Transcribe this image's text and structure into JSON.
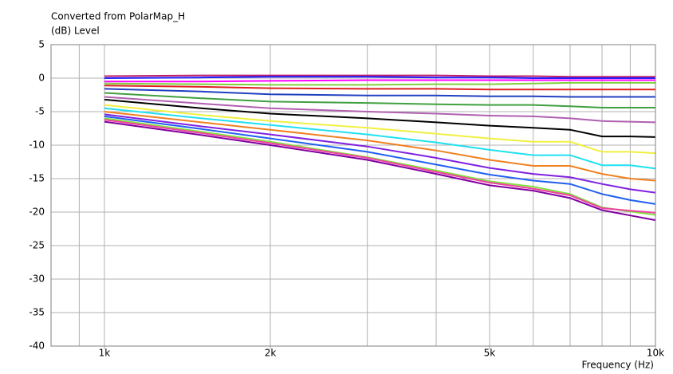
{
  "chart_data": {
    "type": "line",
    "title": "Converted from PolarMap_H",
    "ylabel": "(dB) Level",
    "xlabel": "Frequency (Hz)",
    "xscale": "log",
    "grid": true,
    "xlim": [
      800,
      10000
    ],
    "xticks": [
      {
        "value": 1000,
        "label": "1k"
      },
      {
        "value": 2000,
        "label": "2k"
      },
      {
        "value": 5000,
        "label": "5k"
      },
      {
        "value": 10000,
        "label": "10k"
      }
    ],
    "xgrid": [
      800,
      900,
      1000,
      2000,
      3000,
      4000,
      5000,
      6000,
      7000,
      8000,
      9000,
      10000
    ],
    "ylim": [
      -40,
      5
    ],
    "yticks": [
      5,
      0,
      -5,
      -10,
      -15,
      -20,
      -25,
      -30,
      -35,
      -40
    ],
    "x": [
      1000,
      1500,
      2000,
      3000,
      4000,
      5000,
      6000,
      7000,
      8000,
      9000,
      10000
    ],
    "series": [
      {
        "color": "#c0206a",
        "values": [
          0.3,
          0.4,
          0.4,
          0.4,
          0.4,
          0.3,
          0.3,
          0.2,
          0.2,
          0.2,
          0.2
        ]
      },
      {
        "color": "#2020ff",
        "values": [
          0,
          0.1,
          0.2,
          0.2,
          0.1,
          0.1,
          0,
          0,
          0,
          0,
          0
        ]
      },
      {
        "color": "#ff00ff",
        "values": [
          -0.5,
          -0.5,
          -0.4,
          -0.3,
          -0.3,
          -0.3,
          -0.3,
          -0.3,
          -0.3,
          -0.3,
          -0.3
        ]
      },
      {
        "color": "#80d040",
        "values": [
          -0.8,
          -0.9,
          -1,
          -1,
          -0.9,
          -0.9,
          -0.8,
          -0.7,
          -0.7,
          -0.7,
          -0.7
        ]
      },
      {
        "color": "#e02020",
        "values": [
          -1.1,
          -1.3,
          -1.5,
          -1.6,
          -1.6,
          -1.7,
          -1.7,
          -1.7,
          -1.7,
          -1.7,
          -1.7
        ]
      },
      {
        "color": "#2040c0",
        "values": [
          -1.6,
          -2,
          -2.4,
          -2.6,
          -2.6,
          -2.7,
          -2.7,
          -2.8,
          -2.8,
          -2.8,
          -2.8
        ]
      },
      {
        "color": "#40a040",
        "values": [
          -2.2,
          -3,
          -3.5,
          -3.7,
          -3.9,
          -4,
          -4,
          -4.2,
          -4.4,
          -4.4,
          -4.4
        ]
      },
      {
        "color": "#b060b0",
        "values": [
          -2.8,
          -3.8,
          -4.5,
          -5,
          -5.3,
          -5.6,
          -5.7,
          -6,
          -6.4,
          -6.5,
          -6.6
        ]
      },
      {
        "color": "#000000",
        "values": [
          -3.2,
          -4.5,
          -5.3,
          -6,
          -6.6,
          -7.1,
          -7.4,
          -7.7,
          -8.7,
          -8.7,
          -8.8
        ]
      },
      {
        "color": "#f0f040",
        "values": [
          -4,
          -5.5,
          -6.4,
          -7.4,
          -8.3,
          -9,
          -9.5,
          -9.5,
          -11,
          -11,
          -11.2
        ]
      },
      {
        "color": "#20e0f0",
        "values": [
          -4.5,
          -6,
          -7,
          -8.4,
          -9.6,
          -10.7,
          -11.5,
          -11.5,
          -13,
          -13,
          -13.5
        ]
      },
      {
        "color": "#f08020",
        "values": [
          -5,
          -6.6,
          -7.7,
          -9.3,
          -10.8,
          -12.2,
          -13.1,
          -13.1,
          -14.3,
          -15,
          -15.3
        ]
      },
      {
        "color": "#8020e0",
        "values": [
          -5.4,
          -7.2,
          -8.4,
          -10.2,
          -11.9,
          -13.4,
          -14.3,
          -14.8,
          -15.8,
          -16.6,
          -17.1
        ]
      },
      {
        "color": "#2060f0",
        "values": [
          -5.7,
          -7.6,
          -9,
          -11,
          -12.9,
          -14.4,
          -15.3,
          -15.8,
          -17.3,
          -18.2,
          -18.8
        ]
      },
      {
        "color": "#80e040",
        "values": [
          -6,
          -8,
          -9.5,
          -11.8,
          -13.8,
          -15.4,
          -16.2,
          -17.3,
          -19.3,
          -19.9,
          -20.4
        ]
      },
      {
        "color": "#f040a0",
        "values": [
          -6.2,
          -8.2,
          -9.7,
          -11.9,
          -14,
          -15.6,
          -16.5,
          -17.5,
          -19.4,
          -19.8,
          -20.1
        ]
      },
      {
        "color": "#8000a0",
        "values": [
          -6.5,
          -8.5,
          -10,
          -12.2,
          -14.3,
          -16,
          -16.8,
          -17.9,
          -19.7,
          -20.5,
          -21.2
        ]
      }
    ]
  }
}
